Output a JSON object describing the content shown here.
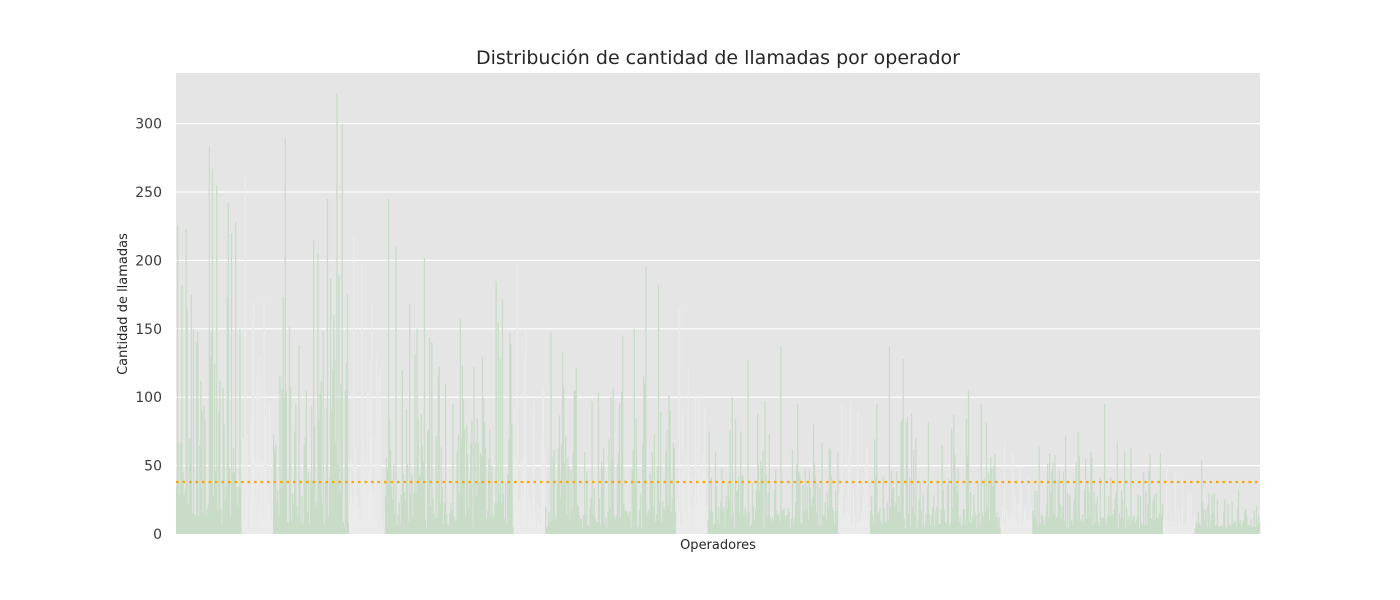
{
  "chart_data": {
    "type": "bar",
    "title": "Distribución de cantidad de llamadas por operador",
    "xlabel": "Operadores",
    "ylabel": "Cantidad de llamadas",
    "ylim": [
      0,
      337
    ],
    "yticks": [
      0,
      50,
      100,
      150,
      200,
      250,
      300
    ],
    "grid": true,
    "mean_line": {
      "value": 38,
      "style": "dotted",
      "color": "#ffa500"
    },
    "colors": {
      "primary": "#c8dcc8",
      "secondary": "#ebebeb",
      "background": "#e5e5e5",
      "grid": "#ffffff"
    },
    "operator_count": 1092,
    "groups": [
      {
        "color": "primary",
        "count": 62,
        "peaks": [
          226,
          182,
          223,
          70,
          150,
          148,
          112,
          83,
          283,
          267,
          255,
          112,
          80,
          242,
          220,
          228,
          150
        ]
      },
      {
        "color": "secondary",
        "count": 30,
        "peaks": [
          262,
          170,
          115,
          95
        ]
      },
      {
        "color": "primary",
        "count": 72,
        "peaks": [
          65,
          115,
          290,
          152,
          75,
          138,
          65,
          45,
          215,
          205,
          148,
          245,
          120,
          322,
          300,
          125
        ]
      },
      {
        "color": "secondary",
        "count": 34,
        "peaks": [
          218,
          198,
          168,
          120
        ]
      },
      {
        "color": "primary",
        "count": 122,
        "peaks": [
          245,
          210,
          120,
          168,
          150,
          202,
          140,
          115,
          110,
          95,
          157,
          80,
          122,
          57,
          55,
          185,
          172,
          148
        ]
      },
      {
        "color": "secondary",
        "count": 30,
        "peaks": [
          198,
          150,
          90,
          70
        ]
      },
      {
        "color": "primary",
        "count": 124,
        "peaks": [
          147,
          133,
          105,
          45,
          103,
          100,
          145,
          150,
          196,
          182,
          90
        ]
      },
      {
        "color": "secondary",
        "count": 30,
        "peaks": [
          165,
          120,
          100,
          60
        ]
      },
      {
        "color": "primary",
        "count": 124,
        "peaks": [
          60,
          100,
          127,
          97,
          137,
          95,
          80,
          62
        ]
      },
      {
        "color": "secondary",
        "count": 30,
        "peaks": [
          95,
          97,
          90,
          62
        ]
      },
      {
        "color": "primary",
        "count": 124,
        "peaks": [
          95,
          137,
          128,
          70,
          82,
          65,
          58,
          105,
          95,
          50
        ]
      },
      {
        "color": "secondary",
        "count": 30,
        "peaks": [
          68,
          60,
          50,
          42
        ]
      },
      {
        "color": "primary",
        "count": 124,
        "peaks": [
          64,
          46,
          72,
          75,
          60,
          95,
          68,
          63,
          45,
          30
        ]
      },
      {
        "color": "secondary",
        "count": 30,
        "peaks": [
          50,
          45,
          40,
          30
        ]
      },
      {
        "color": "primary",
        "count": 62,
        "peaks": [
          54,
          30,
          22,
          10,
          5
        ]
      }
    ]
  }
}
